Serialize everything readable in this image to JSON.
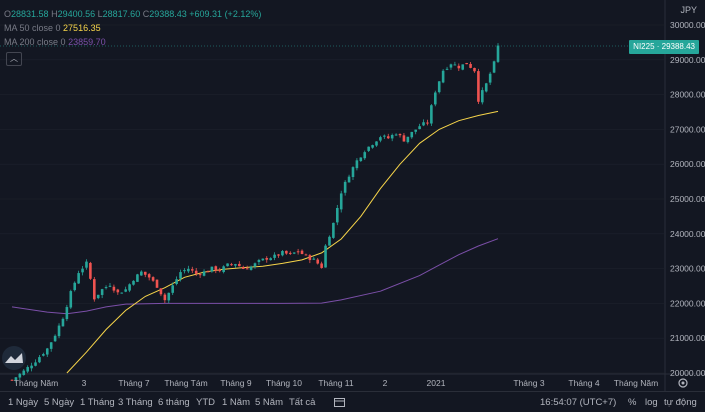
{
  "legend": {
    "open_label": "O",
    "open": "28831.58",
    "high_label": "H",
    "high": "29400.56",
    "low_label": "L",
    "low": "28817.60",
    "close_label": "C",
    "close": "29388.43",
    "change": "+609.31 (+2.12%)",
    "ma50_label": "MA 50 close 0",
    "ma50_value": "27516.35",
    "ma200_label": "MA 200 close 0",
    "ma200_value": "23859.70"
  },
  "currency": "JPY",
  "price_badge": "NI225 · 29388.43",
  "collapse_icon": "chevron-up-icon",
  "price_axis": [
    "30000.00",
    "29000.00",
    "28000.00",
    "27000.00",
    "26000.00",
    "25000.00",
    "24000.00",
    "23000.00",
    "22000.00",
    "21000.00",
    "20000.00"
  ],
  "time_axis": [
    "Tháng Năm",
    "3",
    "Tháng 7",
    "Tháng Tám",
    "Tháng 9",
    "Tháng 10",
    "Tháng 11",
    "2",
    "2021",
    "Tháng 3",
    "Tháng 4",
    "Tháng Năm"
  ],
  "bottom": {
    "ranges": [
      "1 Ngày",
      "5 Ngày",
      "1 Tháng",
      "3 Tháng",
      "6 tháng",
      "YTD",
      "1 Năm",
      "5 Năm",
      "Tất cả"
    ],
    "clock": "16:54:07 (UTC+7)",
    "percent": "%",
    "log": "log",
    "auto": "tự động"
  },
  "colors": {
    "up": "#26a69a",
    "down": "#ef5350",
    "ma50": "#f7d54a",
    "ma200": "#7b4fa8",
    "bg": "#131722"
  },
  "chart_data": {
    "type": "candlestick",
    "symbol": "NI225",
    "ylim": [
      20000,
      30000
    ],
    "x": [
      "Tháng Năm",
      "3",
      "Tháng 7",
      "Tháng Tám",
      "Tháng 9",
      "Tháng 10",
      "Tháng 11",
      "2",
      "2021",
      "Tháng 3",
      "Tháng 4",
      "Tháng Năm"
    ],
    "price_path": [
      [
        0,
        19800
      ],
      [
        3,
        20050
      ],
      [
        6,
        20350
      ],
      [
        9,
        20700
      ],
      [
        11,
        21100
      ],
      [
        13,
        21600
      ],
      [
        15,
        22300
      ],
      [
        17,
        22900
      ],
      [
        19,
        23150
      ],
      [
        20,
        22700
      ],
      [
        21,
        22150
      ],
      [
        23,
        22400
      ],
      [
        25,
        22550
      ],
      [
        27,
        22300
      ],
      [
        29,
        22400
      ],
      [
        31,
        22700
      ],
      [
        33,
        22900
      ],
      [
        35,
        22750
      ],
      [
        37,
        22500
      ],
      [
        39,
        22100
      ],
      [
        41,
        22500
      ],
      [
        43,
        22900
      ],
      [
        45,
        23000
      ],
      [
        47,
        22850
      ],
      [
        49,
        22900
      ],
      [
        51,
        23000
      ],
      [
        53,
        22950
      ],
      [
        55,
        23100
      ],
      [
        57,
        23150
      ],
      [
        59,
        23000
      ],
      [
        61,
        23050
      ],
      [
        63,
        23200
      ],
      [
        65,
        23300
      ],
      [
        67,
        23350
      ],
      [
        69,
        23450
      ],
      [
        71,
        23400
      ],
      [
        73,
        23500
      ],
      [
        75,
        23350
      ],
      [
        77,
        23250
      ],
      [
        79,
        23050
      ],
      [
        80,
        23650
      ],
      [
        82,
        24300
      ],
      [
        84,
        25200
      ],
      [
        86,
        25700
      ],
      [
        88,
        26100
      ],
      [
        90,
        26400
      ],
      [
        92,
        26600
      ],
      [
        94,
        26800
      ],
      [
        96,
        26750
      ],
      [
        98,
        26900
      ],
      [
        100,
        26700
      ],
      [
        102,
        26900
      ],
      [
        104,
        27100
      ],
      [
        106,
        27200
      ],
      [
        108,
        28100
      ],
      [
        110,
        28700
      ],
      [
        112,
        28900
      ],
      [
        114,
        28800
      ],
      [
        116,
        28900
      ],
      [
        118,
        28700
      ],
      [
        119,
        27850
      ],
      [
        121,
        28300
      ],
      [
        123,
        28900
      ],
      [
        124,
        29388
      ]
    ],
    "ma50": [
      [
        14,
        20000
      ],
      [
        19,
        20600
      ],
      [
        24,
        21250
      ],
      [
        29,
        21800
      ],
      [
        34,
        22200
      ],
      [
        39,
        22450
      ],
      [
        44,
        22750
      ],
      [
        49,
        22900
      ],
      [
        54,
        22980
      ],
      [
        59,
        23030
      ],
      [
        64,
        23070
      ],
      [
        69,
        23150
      ],
      [
        74,
        23250
      ],
      [
        79,
        23450
      ],
      [
        84,
        23850
      ],
      [
        89,
        24500
      ],
      [
        94,
        25300
      ],
      [
        99,
        26000
      ],
      [
        104,
        26600
      ],
      [
        109,
        27000
      ],
      [
        114,
        27250
      ],
      [
        119,
        27400
      ],
      [
        124,
        27516
      ]
    ],
    "ma200": [
      [
        0,
        21900
      ],
      [
        9,
        21750
      ],
      [
        14,
        21700
      ],
      [
        19,
        21780
      ],
      [
        24,
        21900
      ],
      [
        29,
        21980
      ],
      [
        39,
        22000
      ],
      [
        49,
        22000
      ],
      [
        59,
        22000
      ],
      [
        69,
        22000
      ],
      [
        79,
        22010
      ],
      [
        84,
        22100
      ],
      [
        94,
        22350
      ],
      [
        104,
        22800
      ],
      [
        109,
        23100
      ],
      [
        114,
        23400
      ],
      [
        119,
        23650
      ],
      [
        124,
        23860
      ]
    ]
  }
}
